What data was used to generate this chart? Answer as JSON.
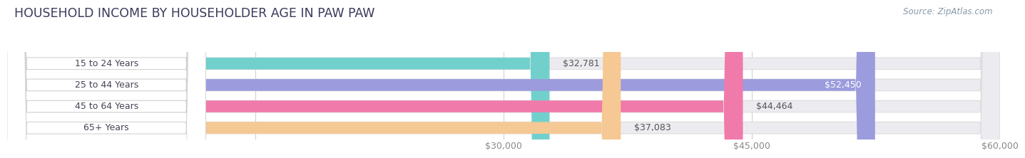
{
  "title": "HOUSEHOLD INCOME BY HOUSEHOLDER AGE IN PAW PAW",
  "source_text": "Source: ZipAtlas.com",
  "categories": [
    "15 to 24 Years",
    "25 to 44 Years",
    "45 to 64 Years",
    "65+ Years"
  ],
  "values": [
    32781,
    52450,
    44464,
    37083
  ],
  "bar_colors": [
    "#72d0cc",
    "#9b9bdd",
    "#f07aaa",
    "#f5c894"
  ],
  "value_inside": [
    false,
    true,
    false,
    false
  ],
  "xlim": [
    0,
    60000
  ],
  "x_axis_start": 0,
  "xticks": [
    30000,
    45000,
    60000
  ],
  "xtick_labels": [
    "$30,000",
    "$45,000",
    "$60,000"
  ],
  "grid_ticks": [
    15000,
    30000,
    45000,
    60000
  ],
  "bg_color": "#ffffff",
  "bar_bg_color": "#ebebf0",
  "label_pill_color": "#ffffff",
  "title_color": "#3a3a5c",
  "source_color": "#8899aa",
  "tick_color": "#aaaaaa",
  "value_color_outside": "#555555",
  "value_color_inside": "#ffffff",
  "title_fontsize": 12.5,
  "label_fontsize": 9,
  "value_fontsize": 9,
  "source_fontsize": 8.5,
  "bar_height": 0.55,
  "n_bars": 4
}
